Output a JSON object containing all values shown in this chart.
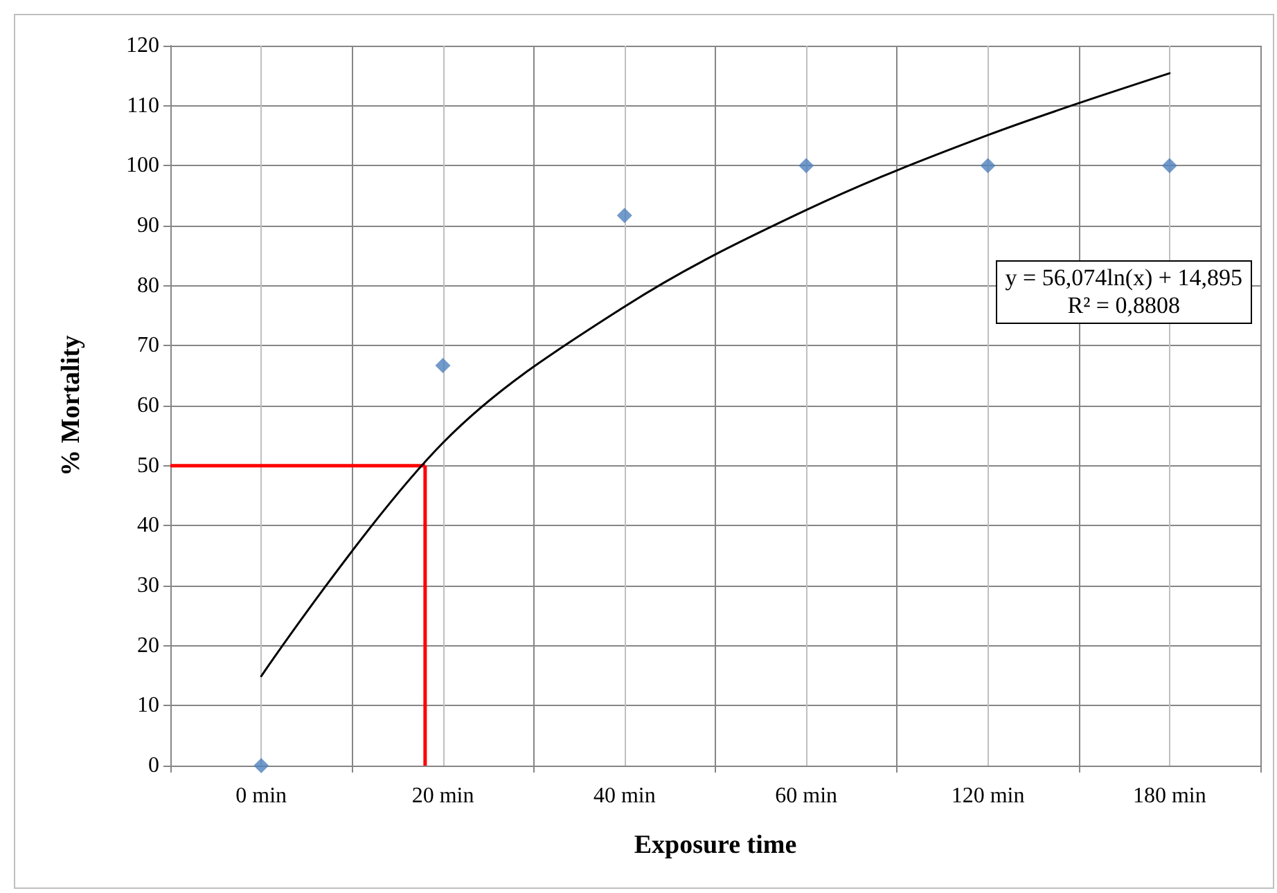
{
  "chart_data": {
    "type": "scatter",
    "xlabel": "Exposure time",
    "ylabel": "% Mortality",
    "categories": [
      "0 min",
      "20 min",
      "40 min",
      "60 min",
      "120 min",
      "180 min"
    ],
    "series": [
      {
        "color": "#4f81bd",
        "values": [
          0,
          66.7,
          91.7,
          100,
          100,
          100
        ],
        "marker": "diamond"
      },
      {
        "type": "line",
        "color": "#000000",
        "values": [
          14.9,
          53.8,
          76.5,
          92.6,
          105.1,
          115.4
        ],
        "marker": "none",
        "line_style": "solid"
      }
    ],
    "ylim": [
      0,
      120
    ],
    "yticks": [
      0,
      10,
      20,
      30,
      40,
      50,
      60,
      70,
      80,
      90,
      100,
      110,
      120
    ],
    "grid": true,
    "ref_lines": [
      {
        "axis": "y",
        "value": 50,
        "color": "#ff0000"
      }
    ],
    "annotations": [
      "y = 56,074ln(x) + 14,895",
      "R² = 0,8808"
    ]
  }
}
